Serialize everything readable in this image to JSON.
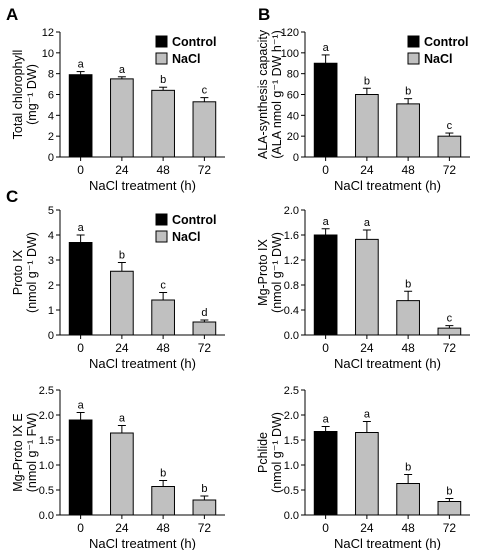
{
  "legend": {
    "control": "Control",
    "nacl": "NaCl"
  },
  "colors": {
    "control": "#000000",
    "nacl": "#c0c0c0"
  },
  "chart_data": [
    {
      "panel": "A",
      "type": "bar",
      "categories": [
        "0",
        "24",
        "48",
        "72"
      ],
      "values": [
        7.9,
        7.5,
        6.4,
        5.3
      ],
      "errors": [
        0.3,
        0.2,
        0.3,
        0.4
      ],
      "letters": [
        "a",
        "a",
        "b",
        "c"
      ],
      "ylabel": [
        "Total chlorophyll",
        "(mg⁻¹ DW)"
      ],
      "xlabel": "NaCl treatment (h)",
      "ylim": [
        0,
        12
      ],
      "yticks": [
        "0",
        "2",
        "4",
        "6",
        "8",
        "10",
        "12"
      ],
      "legend": "top-right"
    },
    {
      "panel": "B",
      "type": "bar",
      "categories": [
        "0",
        "24",
        "48",
        "72"
      ],
      "values": [
        90,
        60,
        51,
        20
      ],
      "errors": [
        8,
        6,
        5,
        3
      ],
      "letters": [
        "a",
        "b",
        "b",
        "c"
      ],
      "ylabel": [
        "ALA-synthesis capacity",
        "(ALA nmol g⁻¹ DW h⁻¹)"
      ],
      "xlabel": "NaCl treatment (h)",
      "ylim": [
        0,
        120
      ],
      "yticks": [
        "0",
        "20",
        "40",
        "60",
        "80",
        "100",
        "120"
      ],
      "legend": "top-right"
    },
    {
      "panel": "C",
      "type": "bar",
      "categories": [
        "0",
        "24",
        "48",
        "72"
      ],
      "values": [
        3.7,
        2.55,
        1.4,
        0.52
      ],
      "errors": [
        0.3,
        0.35,
        0.3,
        0.08
      ],
      "letters": [
        "a",
        "b",
        "c",
        "d"
      ],
      "ylabel": [
        "Proto IX",
        "(nmol g⁻¹ DW)"
      ],
      "xlabel": "NaCl treatment (h)",
      "ylim": [
        0,
        5
      ],
      "yticks": [
        "0",
        "1",
        "2",
        "3",
        "4",
        "5"
      ],
      "legend": "top-right"
    },
    {
      "panel": "",
      "type": "bar",
      "categories": [
        "0",
        "24",
        "48",
        "72"
      ],
      "values": [
        1.6,
        1.53,
        0.55,
        0.11
      ],
      "errors": [
        0.1,
        0.15,
        0.15,
        0.04
      ],
      "letters": [
        "a",
        "a",
        "b",
        "c"
      ],
      "ylabel": [
        "Mg-Proto IX",
        "(nmol g⁻¹ DW)"
      ],
      "xlabel": "NaCl treatment (h)",
      "ylim": [
        0,
        2.0
      ],
      "yticks": [
        "0.0",
        "0.4",
        "0.8",
        "1.2",
        "1.6",
        "2.0"
      ]
    },
    {
      "panel": "",
      "type": "bar",
      "categories": [
        "0",
        "24",
        "48",
        "72"
      ],
      "values": [
        1.9,
        1.64,
        0.57,
        0.3
      ],
      "errors": [
        0.15,
        0.15,
        0.12,
        0.08
      ],
      "letters": [
        "a",
        "a",
        "b",
        "b"
      ],
      "ylabel": [
        "Mg-Proto IX E",
        "(nmol g⁻¹ FW)"
      ],
      "xlabel": "NaCl treatment (h)",
      "ylim": [
        0,
        2.5
      ],
      "yticks": [
        "0.0",
        "0.5",
        "1.0",
        "1.5",
        "2.0",
        "2.5"
      ]
    },
    {
      "panel": "",
      "type": "bar",
      "categories": [
        "0",
        "24",
        "48",
        "72"
      ],
      "values": [
        1.67,
        1.65,
        0.63,
        0.27
      ],
      "errors": [
        0.1,
        0.22,
        0.18,
        0.06
      ],
      "letters": [
        "a",
        "a",
        "b",
        "b"
      ],
      "ylabel": [
        "Pchlide",
        "(nmol g⁻¹ DW)"
      ],
      "xlabel": "NaCl treatment (h)",
      "ylim": [
        0,
        2.5
      ],
      "yticks": [
        "0.0",
        "0.5",
        "1.0",
        "1.5",
        "2.0",
        "2.5"
      ]
    }
  ]
}
